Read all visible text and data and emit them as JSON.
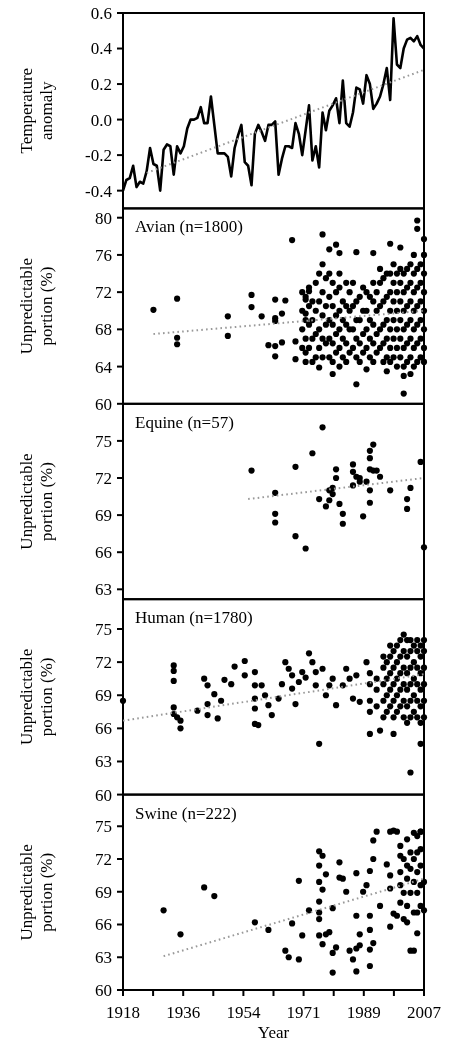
{
  "chart_data": [
    {
      "type": "line",
      "ylabel": "Temperature anomaly",
      "xlim": [
        1918,
        2007
      ],
      "ylim": [
        -0.5,
        0.6
      ],
      "yticks": [
        -0.4,
        -0.2,
        {
          "value": 0,
          "label": "0.0"
        },
        0.2,
        0.4,
        0.6
      ],
      "tick_labels": "y",
      "series": [
        {
          "color": "#000000",
          "x": [
            1918,
            1919,
            1920,
            1921,
            1922,
            1923,
            1924,
            1925,
            1926,
            1927,
            1928,
            1929,
            1930,
            1931,
            1932,
            1933,
            1934,
            1935,
            1936,
            1937,
            1938,
            1939,
            1940,
            1941,
            1942,
            1943,
            1944,
            1945,
            1946,
            1947,
            1948,
            1949,
            1950,
            1951,
            1952,
            1953,
            1954,
            1955,
            1956,
            1957,
            1958,
            1959,
            1960,
            1961,
            1962,
            1963,
            1964,
            1965,
            1966,
            1967,
            1968,
            1969,
            1970,
            1971,
            1972,
            1973,
            1974,
            1975,
            1976,
            1977,
            1978,
            1979,
            1980,
            1981,
            1982,
            1983,
            1984,
            1985,
            1986,
            1987,
            1988,
            1989,
            1990,
            1991,
            1992,
            1993,
            1994,
            1995,
            1996,
            1997,
            1998,
            1999,
            2000,
            2001,
            2002,
            2003,
            2004,
            2005,
            2006,
            2007
          ],
          "values": [
            -0.4,
            -0.34,
            -0.33,
            -0.26,
            -0.38,
            -0.35,
            -0.36,
            -0.29,
            -0.16,
            -0.25,
            -0.26,
            -0.4,
            -0.17,
            -0.14,
            -0.15,
            -0.31,
            -0.15,
            -0.19,
            -0.15,
            -0.05,
            0.0,
            0.0,
            0.01,
            0.07,
            -0.02,
            -0.02,
            0.13,
            -0.03,
            -0.19,
            -0.19,
            -0.19,
            -0.21,
            -0.32,
            -0.16,
            -0.09,
            -0.03,
            -0.24,
            -0.26,
            -0.37,
            -0.08,
            -0.03,
            -0.07,
            -0.12,
            -0.03,
            -0.03,
            -0.01,
            -0.31,
            -0.22,
            -0.15,
            -0.15,
            -0.16,
            -0.02,
            -0.08,
            -0.2,
            -0.06,
            0.08,
            -0.23,
            -0.15,
            -0.27,
            0.04,
            -0.06,
            0.05,
            0.08,
            0.12,
            -0.02,
            0.22,
            -0.02,
            -0.04,
            0.04,
            0.18,
            0.17,
            0.09,
            0.25,
            0.2,
            0.06,
            0.09,
            0.13,
            0.2,
            0.29,
            0.11,
            0.57,
            0.31,
            0.29,
            0.4,
            0.45,
            0.46,
            0.44,
            0.47,
            0.42,
            0.4
          ]
        },
        {
          "type": "line",
          "color": "#999999",
          "line_style": "dotted",
          "x": [
            1925,
            2007
          ],
          "values": [
            -0.3,
            0.28
          ]
        }
      ]
    },
    {
      "type": "scatter",
      "title": "Avian (n=1800)",
      "ylabel": "Unpredictable portion (%)",
      "xlim": [
        1918,
        2007
      ],
      "ylim": [
        60,
        81
      ],
      "yticks": [
        60,
        64,
        68,
        72,
        76,
        80
      ],
      "tick_labels": "y",
      "series": [
        {
          "color": "#000000",
          "x": [
            1927,
            1934,
            1934,
            1934,
            1949,
            1949,
            1956,
            1956,
            1959,
            1961,
            1963,
            1963,
            1963,
            1963,
            1963,
            1965,
            1965,
            1966,
            1968,
            1969,
            1969,
            1972,
            1972,
            1972,
            1973,
            1976,
            1977,
            1979,
            1980,
            1981,
            1982,
            1982,
            1987,
            1987,
            1990,
            1992,
            1996,
            1997,
            2000,
            2001,
            2001,
            2003,
            2005,
            2005,
            2007,
            1971,
            1971,
            1971,
            1971,
            1972,
            1972,
            1972,
            1972,
            1973,
            1973,
            1973,
            1973,
            1974,
            1974,
            1974,
            1974,
            1975,
            1975,
            1975,
            1975,
            1976,
            1976,
            1976,
            1976,
            1977,
            1977,
            1977,
            1977,
            1977,
            1978,
            1978,
            1978,
            1978,
            1979,
            1979,
            1979,
            1979,
            1979,
            1980,
            1980,
            1980,
            1980,
            1980,
            1981,
            1981,
            1981,
            1981,
            1982,
            1982,
            1982,
            1982,
            1982,
            1983,
            1983,
            1983,
            1983,
            1984,
            1984,
            1984,
            1984,
            1984,
            1985,
            1985,
            1985,
            1985,
            1986,
            1986,
            1986,
            1986,
            1987,
            1987,
            1987,
            1987,
            1988,
            1988,
            1988,
            1988,
            1989,
            1989,
            1989,
            1989,
            1990,
            1990,
            1990,
            1990,
            1991,
            1991,
            1991,
            1991,
            1992,
            1992,
            1992,
            1992,
            1992,
            1993,
            1993,
            1993,
            1993,
            1994,
            1994,
            1994,
            1994,
            1994,
            1995,
            1995,
            1995,
            1995,
            1995,
            1996,
            1996,
            1996,
            1996,
            1996,
            1997,
            1997,
            1997,
            1997,
            1997,
            1997,
            1998,
            1998,
            1998,
            1998,
            1998,
            1998,
            1999,
            1999,
            1999,
            1999,
            1999,
            1999,
            2000,
            2000,
            2000,
            2000,
            2000,
            2000,
            2001,
            2001,
            2001,
            2001,
            2001,
            2001,
            2002,
            2002,
            2002,
            2002,
            2002,
            2002,
            2003,
            2003,
            2003,
            2003,
            2003,
            2003,
            2004,
            2004,
            2004,
            2004,
            2004,
            2004,
            2004,
            2005,
            2005,
            2005,
            2005,
            2005,
            2005,
            2006,
            2006,
            2006,
            2006,
            2006,
            2006,
            2007,
            2007,
            2007,
            2007,
            2007,
            2007,
            2007
          ],
          "values": [
            70.1,
            71.3,
            67.1,
            66.4,
            69.4,
            67.3,
            71.7,
            70.4,
            69.4,
            66.3,
            71.2,
            69.2,
            68.9,
            66.2,
            65.1,
            69.7,
            66.6,
            71.1,
            77.6,
            66.7,
            64.8,
            69.7,
            71.2,
            64.5,
            72.1,
            63.9,
            78.2,
            76.6,
            63.2,
            77.1,
            76.2,
            64.0,
            76.3,
            62.1,
            63.7,
            76.2,
            63.5,
            77.2,
            76.8,
            61.1,
            63.0,
            63.2,
            79.7,
            78.8,
            77.7,
            66,
            68,
            70,
            72,
            65.5,
            67,
            69,
            71.5,
            66,
            68.5,
            70.5,
            72.5,
            64.5,
            67,
            69,
            71,
            65,
            67.5,
            70,
            73,
            66,
            68,
            71,
            74,
            65,
            67,
            69.5,
            72,
            75,
            66.5,
            68.5,
            70.5,
            73.5,
            65,
            67,
            69,
            71.5,
            74,
            64.5,
            66.5,
            68.5,
            70.5,
            73,
            65.5,
            67.5,
            69.5,
            72,
            66,
            68,
            70,
            72.5,
            74,
            65,
            67,
            69,
            71,
            64.5,
            66.5,
            68.5,
            70.5,
            73,
            65.5,
            68,
            70,
            72,
            66,
            68,
            70.5,
            73,
            65,
            67,
            69,
            71,
            64.5,
            66.5,
            69,
            71.5,
            65.5,
            67.5,
            70,
            72.5,
            66,
            68,
            70,
            72,
            65,
            67,
            69,
            71.5,
            64.5,
            66.5,
            68.5,
            71,
            73,
            65.5,
            67.5,
            70,
            72,
            66,
            68,
            70.5,
            73,
            74.5,
            64.5,
            66.5,
            68.5,
            71,
            73.5,
            65,
            67,
            69,
            71.5,
            74,
            64.5,
            66,
            68,
            70,
            72,
            74,
            65,
            67,
            69,
            71,
            73,
            75,
            64,
            66,
            68,
            70,
            72,
            74,
            65,
            67,
            69,
            71,
            73,
            74.5,
            64,
            66,
            68,
            70,
            72,
            74,
            64.5,
            66.5,
            68.5,
            70.5,
            72.5,
            74.5,
            65,
            67,
            69,
            71,
            73,
            75,
            64,
            66,
            68,
            70,
            72,
            74,
            76,
            64.5,
            66.5,
            68.5,
            70.5,
            72.5,
            74.5,
            65,
            67,
            69,
            71,
            73,
            75,
            64.5,
            66,
            68,
            70,
            72,
            74,
            76
          ]
        },
        {
          "type": "line",
          "color": "#999999",
          "line_style": "dotted",
          "x": [
            1927,
            2007
          ],
          "values": [
            67.5,
            70.0
          ]
        }
      ]
    },
    {
      "type": "scatter",
      "title": "Equine (n=57)",
      "ylabel": "Unpredictable portion (%)",
      "xlim": [
        1918,
        2007
      ],
      "ylim": [
        62.2,
        78
      ],
      "yticks": [
        63,
        66,
        69,
        72,
        75
      ],
      "tick_labels": "y",
      "series": [
        {
          "color": "#000000",
          "x": [
            1956,
            1963,
            1963,
            1963,
            1969,
            1969,
            1972,
            1974,
            1977,
            1976,
            1978,
            1979,
            1979,
            1980,
            1980,
            1981,
            1981,
            1982,
            1983,
            1983,
            1986,
            1986,
            1986,
            1987,
            1988,
            1988,
            1989,
            1990,
            1991,
            1991,
            1991,
            1991,
            1991,
            1992,
            1992,
            1993,
            1994,
            1997,
            2002,
            2002,
            2003,
            2006,
            2007
          ],
          "values": [
            72.6,
            70.8,
            69.1,
            68.4,
            72.9,
            67.3,
            66.3,
            74.0,
            76.1,
            70.3,
            69.7,
            71.0,
            70.2,
            71.2,
            70.7,
            72.7,
            72.0,
            69.9,
            69.1,
            68.3,
            72.5,
            73.1,
            71.4,
            72.1,
            72.0,
            71.7,
            68.9,
            71.7,
            74.2,
            73.6,
            72.7,
            71.0,
            70.0,
            74.7,
            72.6,
            72.6,
            72.1,
            71.0,
            70.3,
            69.5,
            71.2,
            73.3,
            66.4
          ]
        },
        {
          "type": "line",
          "color": "#999999",
          "line_style": "dotted",
          "x": [
            1955,
            2007
          ],
          "values": [
            70.3,
            72.0
          ]
        }
      ]
    },
    {
      "type": "scatter",
      "title": "Human (n=1780)",
      "ylabel": "Unpredictable portion (%)",
      "xlim": [
        1918,
        2007
      ],
      "ylim": [
        60,
        77.7
      ],
      "yticks": [
        60,
        63,
        66,
        69,
        72,
        75
      ],
      "tick_labels": "y",
      "series": [
        {
          "color": "#000000",
          "x": [
            1918,
            1933,
            1933,
            1933,
            1933,
            1933,
            1934,
            1935,
            1935,
            1940,
            1942,
            1943,
            1943,
            1943,
            1945,
            1946,
            1947,
            1948,
            1950,
            1951,
            1954,
            1954,
            1957,
            1957,
            1957,
            1957,
            1957,
            1958,
            1959,
            1960,
            1961,
            1962,
            1964,
            1965,
            1966,
            1967,
            1968,
            1968,
            1969,
            1970,
            1971,
            1972,
            1973,
            1974,
            1975,
            1975,
            1976,
            1977,
            1978,
            1979,
            1980,
            1981,
            1983,
            1984,
            1985,
            1986,
            1987,
            1988,
            1990,
            1991,
            1994,
            1998,
            2003,
            2006,
            1991,
            1991,
            1991,
            1991,
            1993,
            1993,
            1993,
            1995,
            1995,
            1995,
            1995,
            1995,
            1996,
            1996,
            1996,
            1996,
            1997,
            1997,
            1997,
            1997,
            1997,
            1998,
            1998,
            1998,
            1998,
            1998,
            1999,
            1999,
            1999,
            1999,
            1999,
            2000,
            2000,
            2000,
            2000,
            2000,
            2001,
            2001,
            2001,
            2001,
            2001,
            2001,
            2002,
            2002,
            2002,
            2002,
            2002,
            2002,
            2003,
            2003,
            2003,
            2003,
            2003,
            2003,
            2004,
            2004,
            2004,
            2004,
            2004,
            2005,
            2005,
            2005,
            2005,
            2005,
            2005,
            2006,
            2006,
            2006,
            2006,
            2006,
            2006,
            2007,
            2007,
            2007,
            2007,
            2007,
            2007
          ],
          "values": [
            68.5,
            71.7,
            71.2,
            70.3,
            67.9,
            67.3,
            67.0,
            66.7,
            66.0,
            67.6,
            70.5,
            69.9,
            68.2,
            67.2,
            69.1,
            66.9,
            68.5,
            70.4,
            70.0,
            71.6,
            72.1,
            70.8,
            71.1,
            69.9,
            68.7,
            67.8,
            66.4,
            66.3,
            69.9,
            69.0,
            68.1,
            67.2,
            68.7,
            70.0,
            72.0,
            71.4,
            70.8,
            69.6,
            68.2,
            70.2,
            71.1,
            70.6,
            72.8,
            72.0,
            71.1,
            69.9,
            64.6,
            71.4,
            69.0,
            69.9,
            70.5,
            68.1,
            69.9,
            71.4,
            70.5,
            68.7,
            70.8,
            68.4,
            72.0,
            65.5,
            65.8,
            65.5,
            62.0,
            64.6,
            67.5,
            68.5,
            70,
            71,
            68,
            69.5,
            70.5,
            67,
            68.5,
            70,
            71.5,
            72.5,
            67.5,
            69,
            70.5,
            72,
            68,
            69.5,
            71,
            72.5,
            73.5,
            67,
            68.5,
            70,
            71.5,
            73,
            67.5,
            69,
            70.5,
            72,
            73.5,
            68,
            69.5,
            71,
            72.5,
            74,
            67,
            68.5,
            70,
            71.5,
            73,
            74.5,
            66.5,
            68,
            69.5,
            71,
            72.5,
            74,
            67,
            68.5,
            70,
            71.5,
            73,
            74,
            67.5,
            69,
            70.5,
            72,
            73.5,
            67,
            68.5,
            70,
            71.5,
            73,
            74,
            66.5,
            68,
            69.5,
            71,
            72.5,
            73.5,
            67,
            68.5,
            70,
            71.5,
            73,
            74
          ]
        },
        {
          "type": "line",
          "color": "#999999",
          "line_style": "dotted",
          "x": [
            1918,
            2007
          ],
          "values": [
            66.7,
            70.9
          ]
        }
      ]
    },
    {
      "type": "scatter",
      "title": "Swine (n=222)",
      "xlabel": "Year",
      "ylabel": "Unpredictable portion (%)",
      "xlim": [
        1918,
        2007
      ],
      "xticks": [
        1918,
        {
          "value": 1926.9,
          "label": null
        },
        {
          "value": 1935.8,
          "label": "1936"
        },
        {
          "value": 1944.7,
          "label": null
        },
        {
          "value": 1953.6,
          "label": "1954"
        },
        {
          "value": 1962.5,
          "label": null
        },
        {
          "value": 1971.4,
          "label": "1971"
        },
        {
          "value": 1980.3,
          "label": null
        },
        {
          "value": 1989.2,
          "label": "1989"
        },
        {
          "value": 1998.1,
          "label": null
        },
        2007
      ],
      "ylim": [
        60,
        77.9
      ],
      "yticks": [
        60,
        63,
        66,
        69,
        72,
        75
      ],
      "series": [
        {
          "color": "#000000",
          "x": [
            1930,
            1935,
            1942,
            1945,
            1957,
            1961,
            1966,
            1967,
            1968,
            1970,
            1970,
            1971,
            1973,
            1976,
            1976,
            1976,
            1976,
            1976,
            1976,
            1976,
            1977,
            1977,
            1977,
            1978,
            1978,
            1979,
            1980,
            1980,
            1980,
            1981,
            1982,
            1982,
            1983,
            1984,
            1985,
            1986,
            1987,
            1987,
            1987,
            1987,
            1988,
            1988,
            1989,
            1990,
            1991,
            1991,
            1991,
            1991,
            1991,
            1992,
            1992,
            1992,
            1993,
            1994,
            1996,
            1997,
            1997,
            1997,
            1997,
            1998,
            1998,
            1999,
            1999,
            2000,
            2000,
            2000,
            2000,
            2000,
            2001,
            2001,
            2001,
            2002,
            2002,
            2002,
            2002,
            2002,
            2003,
            2003,
            2003,
            2003,
            2004,
            2004,
            2004,
            2004,
            2004,
            2005,
            2005,
            2005,
            2005,
            2005,
            2005,
            2006,
            2006,
            2006,
            2006,
            2006,
            2006,
            2007,
            2007
          ],
          "values": [
            67.3,
            65.1,
            69.4,
            68.6,
            66.2,
            65.5,
            63.6,
            63.0,
            66.1,
            70.0,
            62.8,
            65.0,
            67.3,
            72.7,
            71.4,
            69.9,
            68.1,
            67.1,
            66.5,
            65.0,
            72.3,
            69.2,
            64.2,
            70.6,
            65.1,
            65.3,
            61.6,
            63.4,
            67.5,
            63.9,
            71.7,
            70.3,
            70.2,
            69.0,
            63.6,
            62.8,
            61.7,
            63.8,
            66.8,
            70.7,
            64.1,
            65.1,
            69.0,
            69.6,
            70.9,
            66.8,
            65.5,
            63.7,
            62.2,
            73.7,
            72.0,
            64.3,
            74.5,
            67.7,
            71.5,
            65.8,
            74.5,
            70.5,
            69.3,
            74.6,
            67.0,
            74.5,
            66.8,
            73.2,
            72.3,
            70.8,
            69.6,
            68.0,
            72.0,
            68.9,
            66.5,
            73.8,
            71.4,
            70.2,
            67.7,
            66.2,
            72.6,
            71.1,
            68.9,
            63.6,
            74.4,
            72.0,
            69.9,
            67.1,
            63.6,
            74.1,
            72.6,
            70.8,
            68.9,
            67.1,
            65.2,
            74.5,
            72.9,
            71.4,
            69.6,
            67.7,
            74.5,
            69.9,
            67.3
          ]
        },
        {
          "type": "line",
          "color": "#999999",
          "line_style": "dotted",
          "x": [
            1930,
            2007
          ],
          "values": [
            63.1,
            70.2
          ]
        }
      ]
    }
  ]
}
